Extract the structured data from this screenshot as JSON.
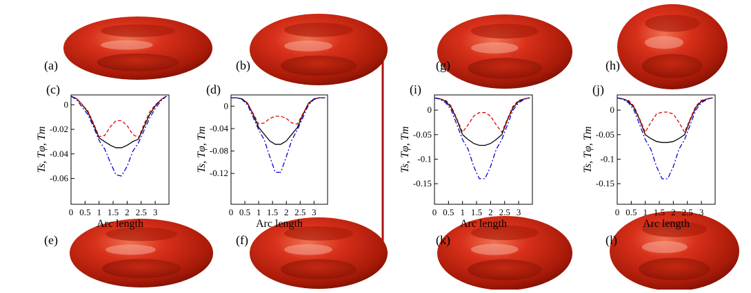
{
  "shape_labels": [
    "(a)",
    "(b)",
    "(g)",
    "(h)",
    "(e)",
    "(f)",
    "(k)",
    "(l)"
  ],
  "chart_data": [
    {
      "type": "line",
      "panel_label": "(c)",
      "xlabel": "Arc length",
      "ylabel": "Ts, Tφ, Tm",
      "x": [
        0,
        0.2,
        0.4,
        0.6,
        0.8,
        1.0,
        1.2,
        1.4,
        1.6,
        1.8,
        2.0,
        2.2,
        2.4,
        2.6,
        2.8,
        3.0,
        3.2,
        3.4
      ],
      "xlim": [
        0,
        3.49
      ],
      "xticks": [
        0,
        0.5,
        1,
        1.5,
        2,
        2.5,
        3
      ],
      "ylim": [
        -0.081,
        0.008
      ],
      "yticks": [
        0,
        -0.02,
        -0.04,
        -0.06
      ],
      "series": [
        {
          "color": "#000000",
          "style": "solid",
          "values": [
            0.007,
            0.005,
            0.0,
            -0.006,
            -0.016,
            -0.027,
            -0.03,
            -0.033,
            -0.035,
            -0.035,
            -0.033,
            -0.03,
            -0.028,
            -0.018,
            -0.008,
            -0.001,
            0.004,
            0.007
          ]
        },
        {
          "color": "#e00000",
          "style": "dashed",
          "values": [
            0.007,
            0.005,
            0.0,
            -0.005,
            -0.015,
            -0.026,
            -0.025,
            -0.018,
            -0.013,
            -0.013,
            -0.017,
            -0.024,
            -0.027,
            -0.016,
            -0.006,
            0.0,
            0.004,
            0.007
          ]
        },
        {
          "color": "#0000d0",
          "style": "dashdot",
          "values": [
            0.007,
            0.004,
            -0.002,
            -0.008,
            -0.018,
            -0.029,
            -0.036,
            -0.047,
            -0.057,
            -0.058,
            -0.05,
            -0.038,
            -0.031,
            -0.021,
            -0.011,
            -0.003,
            0.003,
            0.007
          ]
        }
      ]
    },
    {
      "type": "line",
      "panel_label": "(d)",
      "xlabel": "Arc length",
      "ylabel": "Ts, Tφ, Tm",
      "x": [
        0,
        0.2,
        0.4,
        0.6,
        0.8,
        1.0,
        1.2,
        1.4,
        1.6,
        1.8,
        2.0,
        2.2,
        2.4,
        2.6,
        2.8,
        3.0,
        3.2,
        3.4
      ],
      "xlim": [
        0,
        3.49
      ],
      "xticks": [
        0,
        0.5,
        1,
        1.5,
        2,
        2.5,
        3
      ],
      "ylim": [
        -0.175,
        0.02
      ],
      "yticks": [
        0,
        -0.04,
        -0.08,
        -0.12
      ],
      "series": [
        {
          "color": "#000000",
          "style": "solid",
          "values": [
            0.015,
            0.015,
            0.013,
            0.005,
            -0.015,
            -0.038,
            -0.05,
            -0.062,
            -0.068,
            -0.068,
            -0.062,
            -0.05,
            -0.038,
            -0.015,
            0.005,
            0.013,
            0.015,
            0.015
          ]
        },
        {
          "color": "#e00000",
          "style": "dashed",
          "values": [
            0.015,
            0.015,
            0.012,
            0.004,
            -0.013,
            -0.032,
            -0.03,
            -0.022,
            -0.018,
            -0.018,
            -0.022,
            -0.03,
            -0.032,
            -0.013,
            0.004,
            0.012,
            0.015,
            0.015
          ]
        },
        {
          "color": "#0000d0",
          "style": "dashdot",
          "values": [
            0.015,
            0.015,
            0.012,
            0.002,
            -0.02,
            -0.042,
            -0.06,
            -0.09,
            -0.118,
            -0.118,
            -0.09,
            -0.06,
            -0.042,
            -0.02,
            0.002,
            0.012,
            0.015,
            0.015
          ]
        }
      ]
    },
    {
      "type": "line",
      "panel_label": "(i)",
      "xlabel": "Arc length",
      "ylabel": "Ts, Tφ, Tm",
      "x": [
        0,
        0.2,
        0.4,
        0.6,
        0.8,
        1.0,
        1.2,
        1.4,
        1.6,
        1.8,
        2.0,
        2.2,
        2.4,
        2.6,
        2.8,
        3.0,
        3.2,
        3.4
      ],
      "xlim": [
        0,
        3.49
      ],
      "xticks": [
        0,
        0.5,
        1,
        1.5,
        2,
        2.5,
        3
      ],
      "ylim": [
        -0.192,
        0.031
      ],
      "yticks": [
        0,
        -0.05,
        -0.1,
        -0.15
      ],
      "series": [
        {
          "color": "#000000",
          "style": "solid",
          "values": [
            0.025,
            0.023,
            0.018,
            0.005,
            -0.02,
            -0.05,
            -0.06,
            -0.068,
            -0.072,
            -0.072,
            -0.068,
            -0.06,
            -0.05,
            -0.02,
            0.005,
            0.018,
            0.023,
            0.025
          ]
        },
        {
          "color": "#e00000",
          "style": "dashed",
          "values": [
            0.025,
            0.023,
            0.02,
            0.008,
            -0.018,
            -0.045,
            -0.03,
            -0.012,
            -0.005,
            -0.005,
            -0.012,
            -0.03,
            -0.045,
            -0.018,
            0.008,
            0.02,
            0.023,
            0.025
          ]
        },
        {
          "color": "#0000d0",
          "style": "dashdot",
          "values": [
            0.025,
            0.022,
            0.015,
            0.0,
            -0.03,
            -0.06,
            -0.08,
            -0.115,
            -0.14,
            -0.14,
            -0.115,
            -0.08,
            -0.06,
            -0.03,
            0.0,
            0.015,
            0.022,
            0.025
          ]
        }
      ]
    },
    {
      "type": "line",
      "panel_label": "(j)",
      "xlabel": "Arc length",
      "ylabel": "Ts, Tφ, Tm",
      "x": [
        0,
        0.2,
        0.4,
        0.6,
        0.8,
        1.0,
        1.2,
        1.4,
        1.6,
        1.8,
        2.0,
        2.2,
        2.4,
        2.6,
        2.8,
        3.0,
        3.2,
        3.4
      ],
      "xlim": [
        0,
        3.49
      ],
      "xticks": [
        0,
        0.5,
        1,
        1.5,
        2,
        2.5,
        3
      ],
      "ylim": [
        -0.192,
        0.031
      ],
      "yticks": [
        0,
        -0.05,
        -0.1,
        -0.15
      ],
      "series": [
        {
          "color": "#000000",
          "style": "solid",
          "values": [
            0.025,
            0.023,
            0.018,
            0.005,
            -0.02,
            -0.05,
            -0.058,
            -0.064,
            -0.066,
            -0.066,
            -0.064,
            -0.058,
            -0.05,
            -0.02,
            0.005,
            0.018,
            0.023,
            0.025
          ]
        },
        {
          "color": "#e00000",
          "style": "dashed",
          "values": [
            0.025,
            0.023,
            0.02,
            0.008,
            -0.018,
            -0.045,
            -0.025,
            -0.008,
            -0.004,
            -0.004,
            -0.008,
            -0.025,
            -0.045,
            -0.018,
            0.008,
            0.02,
            0.023,
            0.025
          ]
        },
        {
          "color": "#0000d0",
          "style": "dashdot",
          "values": [
            0.025,
            0.022,
            0.015,
            0.0,
            -0.03,
            -0.06,
            -0.08,
            -0.115,
            -0.14,
            -0.14,
            -0.115,
            -0.08,
            -0.06,
            -0.03,
            0.0,
            0.015,
            0.022,
            0.025
          ]
        }
      ]
    }
  ]
}
